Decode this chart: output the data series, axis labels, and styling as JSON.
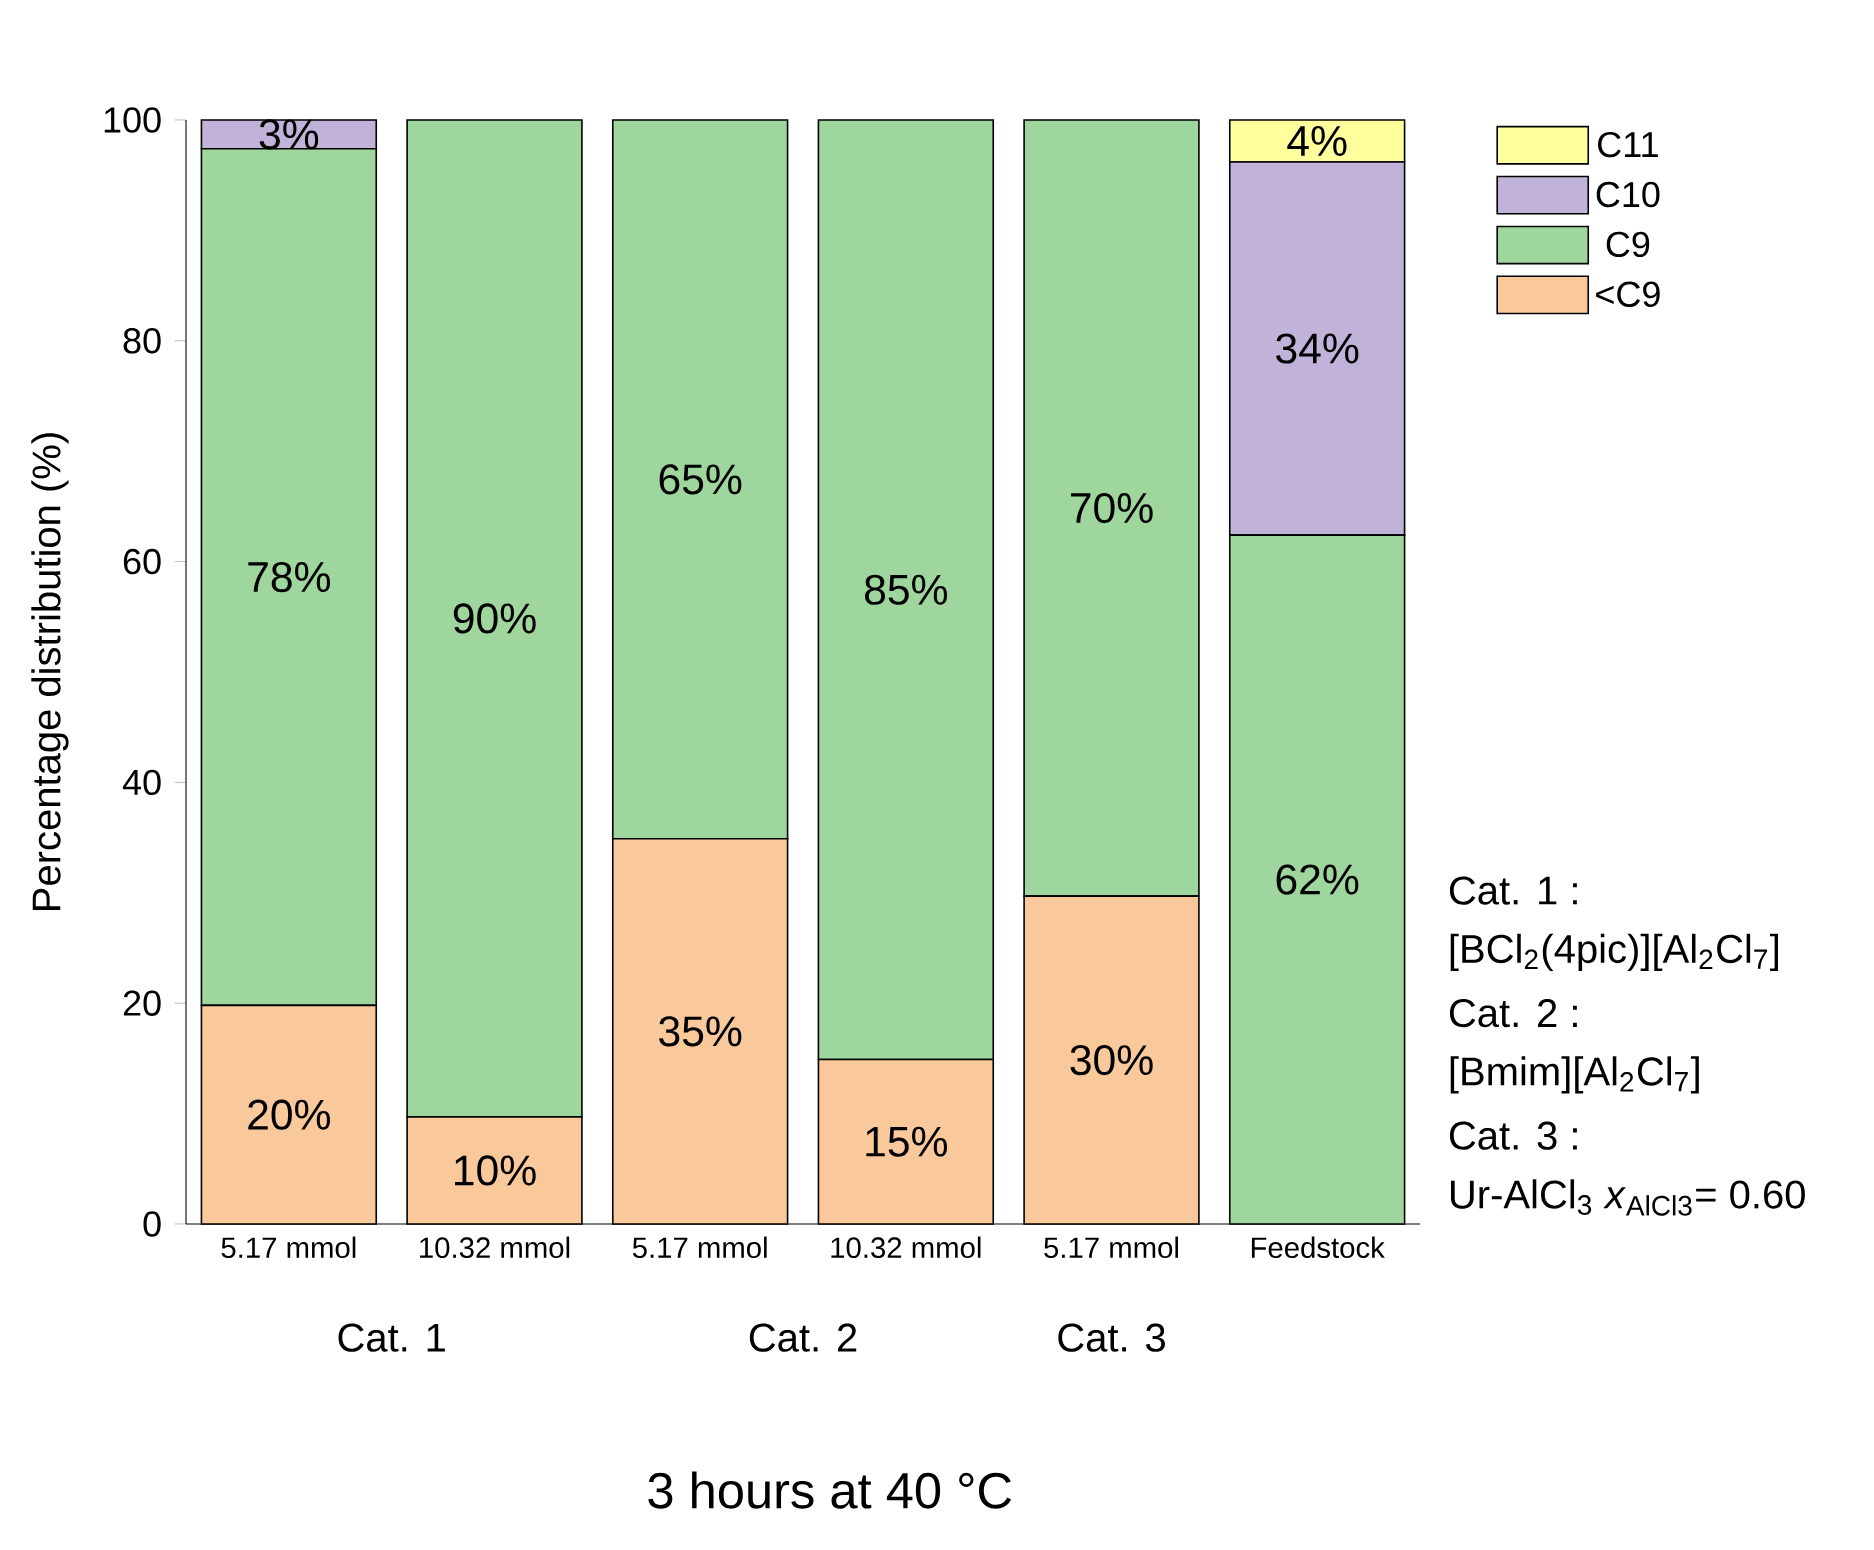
{
  "chart_data": {
    "type": "bar",
    "stacked": true,
    "ylabel": "Percentage distribution (%)",
    "categories": [
      "5.17 mmol",
      "10.32 mmol",
      "5.17 mmol",
      "10.32 mmol",
      "5.17 mmol",
      "Feedstock"
    ],
    "ylim": [
      0,
      100
    ],
    "yticks": [
      0,
      20,
      40,
      60,
      80,
      100
    ],
    "legend": "top right",
    "grid": false,
    "series": [
      {
        "name": "<C9",
        "color": "#f9c89b",
        "values": [
          19.8,
          9.7,
          34.9,
          14.9,
          29.7,
          0
        ],
        "value_labels": [
          "20%",
          "10%",
          "35%",
          "15%",
          "30%",
          null
        ]
      },
      {
        "name": "C9",
        "color": "#9fd69d",
        "values": [
          77.6,
          90.3,
          65.1,
          85.1,
          70.3,
          62.4
        ],
        "value_labels": [
          "78%",
          "90%",
          "65%",
          "85%",
          "70%",
          "62%"
        ]
      },
      {
        "name": "C10",
        "color": "#c0b2d8",
        "values": [
          2.6,
          0,
          0,
          0,
          0,
          33.8
        ],
        "value_labels": [
          "3%",
          null,
          null,
          null,
          null,
          "34%"
        ]
      },
      {
        "name": "C11",
        "color": "#ffff9e",
        "values": [
          0,
          0,
          0,
          0,
          0,
          3.8
        ],
        "value_labels": [
          null,
          null,
          null,
          null,
          null,
          "4%"
        ]
      }
    ],
    "annotations": [
      "Cat. 1",
      "Cat. 2",
      "Cat. 3",
      "Cat. 1 :",
      "[BCl$_{2}$(4pic)][Al$_{2}$Cl$_{7}$]",
      "Cat. 2 :",
      "[Bmim][Al$_{2}$Cl$_{7}$]",
      "Cat. 3 :",
      "Ur-AlCl$_{3}$ *x*$_{AlCl3}$= 0.60",
      "3 hours at 40 °C"
    ]
  }
}
